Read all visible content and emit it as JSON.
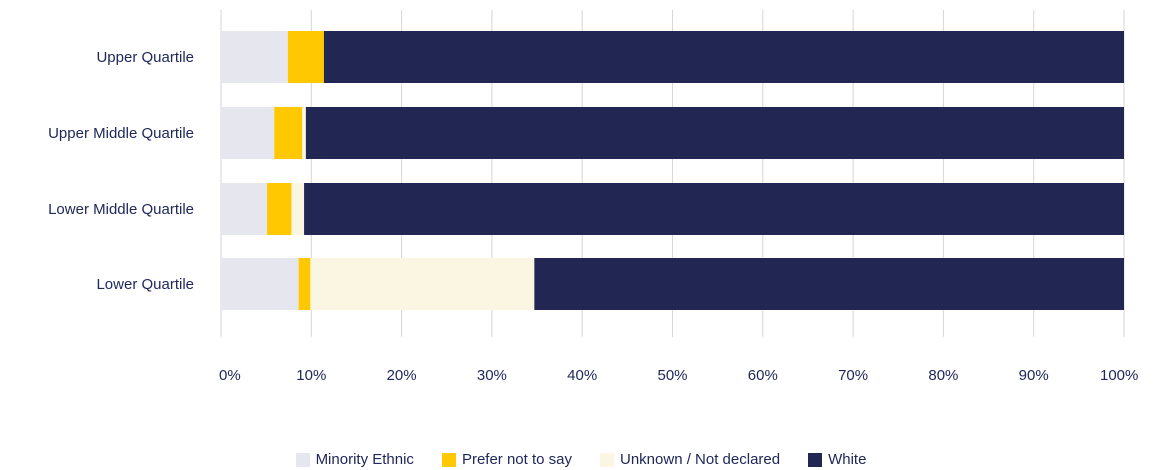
{
  "colors": {
    "text": "#20285a",
    "grid": "#d6d6d6",
    "minority_ethnic": "#e6e6ef",
    "prefer_not_to_say": "#ffc800",
    "unknown_not_declared": "#faf6e1",
    "white": "#212653"
  },
  "chart_data": {
    "type": "bar",
    "orientation": "horizontal",
    "stacked": true,
    "categories": [
      "Upper Quartile",
      "Upper Middle Quartile",
      "Lower Middle Quartile",
      "Lower Quartile"
    ],
    "series": [
      {
        "name": "Minority Ethnic",
        "values": [
          7.4,
          5.9,
          5.1,
          8.6
        ]
      },
      {
        "name": "Prefer not to say",
        "values": [
          4.0,
          3.1,
          2.7,
          1.3
        ]
      },
      {
        "name": "Unknown / Not declared",
        "values": [
          0.0,
          0.4,
          1.4,
          24.8
        ]
      },
      {
        "name": "White",
        "values": [
          88.6,
          90.6,
          90.8,
          65.3
        ]
      }
    ],
    "x_ticks": [
      "0%",
      "10%",
      "20%",
      "30%",
      "40%",
      "50%",
      "60%",
      "70%",
      "80%",
      "90%",
      "100%"
    ],
    "xlim": [
      0,
      100
    ],
    "grid": true,
    "legend_position": "bottom"
  }
}
